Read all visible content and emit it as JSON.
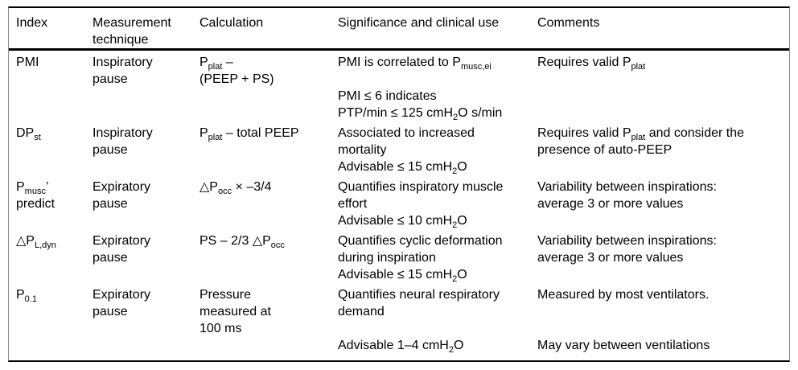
{
  "page": {
    "background": "#ffffff",
    "text_color": "#000000",
    "rule_color": "#000000",
    "edge_line_color": "#8a8a8a"
  },
  "table": {
    "header": {
      "index": [
        "Index"
      ],
      "technique": [
        "Measurement",
        "technique"
      ],
      "calculation": [
        "Calculation"
      ],
      "significance": [
        "Significance and clinical use"
      ],
      "comments": [
        "Comments"
      ]
    },
    "rows": [
      {
        "index": [
          "PMI"
        ],
        "technique": [
          "Inspiratory",
          "pause"
        ],
        "calculation": [
          "P~plat~ –",
          "(PEEP + PS)"
        ],
        "significance": [
          "PMI is correlated to P~musc,ei~",
          "",
          "PMI ≤ 6 indicates",
          "PTP/min ≤ 125 cmH~2~O s/min"
        ],
        "comments": [
          "Requires valid P~plat~"
        ]
      },
      {
        "index": [
          "DP~st~"
        ],
        "technique": [
          "Inspiratory",
          "pause"
        ],
        "calculation": [
          "P~plat~ – total PEEP"
        ],
        "significance": [
          "Associated to increased",
          "mortality",
          "Advisable ≤ 15 cmH~2~O"
        ],
        "comments": [
          "Requires valid P~plat~ and consider the",
          "presence of auto-PEEP"
        ]
      },
      {
        "index": [
          "P~musc~’",
          "predict"
        ],
        "technique": [
          "Expiratory",
          "pause"
        ],
        "calculation": [
          "△P~occ~ × –3/4"
        ],
        "significance": [
          "Quantifies inspiratory muscle",
          "effort",
          "Advisable ≤ 10 cmH~2~O"
        ],
        "comments": [
          "Variability between inspirations:",
          "average 3 or more values"
        ]
      },
      {
        "index": [
          "△P~L,dyn~"
        ],
        "technique": [
          "Expiratory",
          "pause"
        ],
        "calculation": [
          "PS – 2/3 △P~occ~"
        ],
        "significance": [
          "Quantifies cyclic deformation",
          "during inspiration",
          "Advisable ≤ 15 cmH~2~O"
        ],
        "comments": [
          "Variability between inspirations:",
          "average 3 or more values"
        ]
      },
      {
        "index": [
          "P~0.1~"
        ],
        "technique": [
          "Expiratory",
          "pause"
        ],
        "calculation": [
          "Pressure",
          "measured at",
          "100 ms"
        ],
        "significance": [
          "Quantifies neural respiratory",
          "demand",
          "",
          "Advisable 1–4 cmH~2~O"
        ],
        "comments": [
          "Measured by most ventilators.",
          "",
          "",
          "May vary between ventilations"
        ]
      }
    ]
  }
}
